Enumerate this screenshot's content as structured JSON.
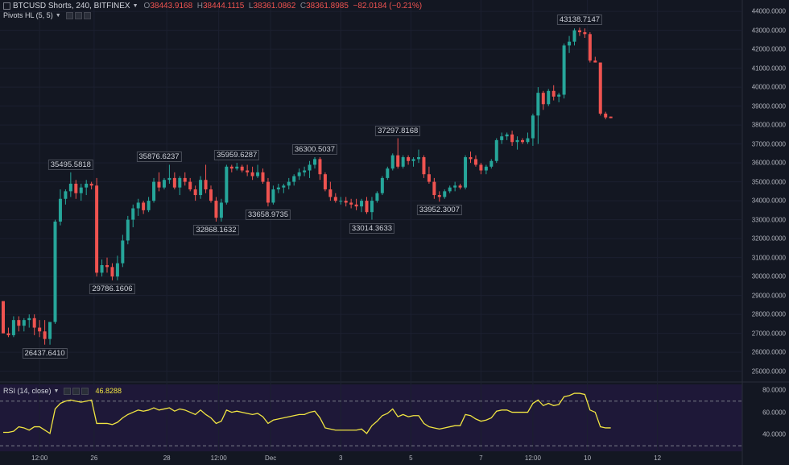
{
  "legend": {
    "symbol": "BTCUSD Shorts, 240, BITFINEX",
    "o_label": "O",
    "o_value": "38443.9168",
    "h_label": "H",
    "h_value": "38444.1115",
    "l_label": "L",
    "l_value": "38361.0862",
    "c_label": "C",
    "c_value": "38361.8985",
    "change": "−82.0184 (−0.21%)"
  },
  "indicators": {
    "pivots_label": "Pivots HL (5, 5)",
    "rsi_label": "RSI (14, close)",
    "rsi_value": "46.8288"
  },
  "colors": {
    "background": "#131722",
    "rsi_background": "#1e1838",
    "up": "#26a69a",
    "down": "#ef5350",
    "rsi_line": "#f0e442"
  },
  "chart_data": {
    "type": "candlestick",
    "price_range": [
      24600,
      44600
    ],
    "price_ticks": [
      25000,
      26000,
      27000,
      28000,
      29000,
      30000,
      31000,
      32000,
      33000,
      34000,
      35000,
      36000,
      37000,
      38000,
      39000,
      40000,
      41000,
      42000,
      43000,
      44000
    ],
    "price_tick_labels": [
      "25000.0000",
      "26000.0000",
      "27000.0000",
      "28000.0000",
      "29000.0000",
      "30000.0000",
      "31000.0000",
      "32000.0000",
      "33000.0000",
      "34000.0000",
      "35000.0000",
      "36000.0000",
      "37000.0000",
      "38000.0000",
      "39000.0000",
      "40000.0000",
      "41000.0000",
      "42000.0000",
      "43000.0000",
      "44000.0000"
    ],
    "x_ticks": [
      {
        "label": "12:00",
        "index": 7
      },
      {
        "label": "26",
        "index": 17.5
      },
      {
        "label": "28",
        "index": 31.5
      },
      {
        "label": "12:00",
        "index": 41.5
      },
      {
        "label": "Dec",
        "index": 51.5
      },
      {
        "label": "3",
        "index": 65
      },
      {
        "label": "5",
        "index": 78.5
      },
      {
        "label": "7",
        "index": 92
      },
      {
        "label": "12:00",
        "index": 102
      },
      {
        "label": "10",
        "index": 112.5
      },
      {
        "label": "12",
        "index": 126
      }
    ],
    "candles": [
      [
        28700,
        28700,
        27000,
        27000
      ],
      [
        27000,
        27300,
        26800,
        26900
      ],
      [
        26900,
        27900,
        26800,
        27700
      ],
      [
        27700,
        27900,
        27100,
        27400
      ],
      [
        27400,
        27800,
        27100,
        27700
      ],
      [
        27700,
        28000,
        27300,
        27800
      ],
      [
        27800,
        28000,
        26900,
        27300
      ],
      [
        27300,
        27700,
        26800,
        27100
      ],
      [
        27100,
        27700,
        26400,
        26700
      ],
      [
        26700,
        27500,
        26400,
        27600
      ],
      [
        27600,
        33000,
        27500,
        32900
      ],
      [
        32900,
        34600,
        32700,
        34100
      ],
      [
        34100,
        34600,
        33800,
        34500
      ],
      [
        34500,
        35500,
        34200,
        34900
      ],
      [
        34900,
        35100,
        34100,
        34400
      ],
      [
        34400,
        34900,
        34000,
        34700
      ],
      [
        34700,
        35100,
        34300,
        34900
      ],
      [
        34900,
        35000,
        34600,
        34800
      ],
      [
        34800,
        35200,
        30000,
        30200
      ],
      [
        30200,
        30900,
        30000,
        30600
      ],
      [
        30600,
        31000,
        30200,
        30500
      ],
      [
        30500,
        30700,
        29800,
        30000
      ],
      [
        30000,
        31100,
        29800,
        30700
      ],
      [
        30700,
        32200,
        30500,
        31900
      ],
      [
        31900,
        33200,
        31700,
        33000
      ],
      [
        33000,
        33800,
        32600,
        33600
      ],
      [
        33600,
        34100,
        33200,
        33900
      ],
      [
        33900,
        34000,
        33300,
        33500
      ],
      [
        33500,
        34200,
        33400,
        34000
      ],
      [
        34000,
        35200,
        33900,
        35000
      ],
      [
        35000,
        35500,
        34500,
        34700
      ],
      [
        34700,
        35200,
        34600,
        35100
      ],
      [
        35100,
        35900,
        34900,
        35200
      ],
      [
        35200,
        35500,
        34600,
        34700
      ],
      [
        34700,
        35300,
        34300,
        35200
      ],
      [
        35200,
        35500,
        34800,
        35000
      ],
      [
        35000,
        35200,
        34500,
        34600
      ],
      [
        34600,
        34800,
        34000,
        34300
      ],
      [
        34300,
        35300,
        34100,
        35100
      ],
      [
        35100,
        35900,
        34400,
        34600
      ],
      [
        34600,
        34800,
        33900,
        34000
      ],
      [
        34000,
        34200,
        32900,
        33100
      ],
      [
        33100,
        34100,
        32900,
        33900
      ],
      [
        33900,
        35900,
        33800,
        35800
      ],
      [
        35800,
        35900,
        35500,
        35700
      ],
      [
        35700,
        36000,
        35600,
        35800
      ],
      [
        35800,
        35900,
        35500,
        35600
      ],
      [
        35600,
        35900,
        35300,
        35500
      ],
      [
        35500,
        35800,
        35100,
        35300
      ],
      [
        35300,
        35900,
        35200,
        35500
      ],
      [
        35500,
        35700,
        34900,
        35000
      ],
      [
        35000,
        35200,
        33700,
        33900
      ],
      [
        33900,
        34800,
        33800,
        34600
      ],
      [
        34600,
        34900,
        34400,
        34700
      ],
      [
        34700,
        34900,
        34400,
        34800
      ],
      [
        34800,
        35200,
        34600,
        35000
      ],
      [
        35000,
        35400,
        34800,
        35300
      ],
      [
        35300,
        35700,
        35100,
        35500
      ],
      [
        35500,
        35800,
        35300,
        35600
      ],
      [
        35600,
        36100,
        35200,
        35900
      ],
      [
        35900,
        36300,
        35700,
        36200
      ],
      [
        36200,
        36300,
        35100,
        35400
      ],
      [
        35400,
        35500,
        34500,
        34600
      ],
      [
        34600,
        35000,
        34000,
        34200
      ],
      [
        34200,
        34400,
        33900,
        34000
      ],
      [
        34000,
        34200,
        33800,
        34000
      ],
      [
        34000,
        34200,
        33700,
        33900
      ],
      [
        33900,
        34100,
        33600,
        33800
      ],
      [
        33800,
        34100,
        33500,
        33700
      ],
      [
        33700,
        34100,
        33400,
        34000
      ],
      [
        34000,
        34200,
        33300,
        33400
      ],
      [
        33400,
        34200,
        33000,
        34000
      ],
      [
        34000,
        34500,
        33900,
        34400
      ],
      [
        34400,
        35300,
        34300,
        35200
      ],
      [
        35200,
        35800,
        35100,
        35700
      ],
      [
        35700,
        36500,
        35600,
        36400
      ],
      [
        36400,
        37300,
        35700,
        35800
      ],
      [
        35800,
        36400,
        35700,
        36300
      ],
      [
        36300,
        36400,
        35900,
        36100
      ],
      [
        36100,
        36300,
        35800,
        36200
      ],
      [
        36200,
        36700,
        36000,
        36300
      ],
      [
        36300,
        36400,
        35200,
        35400
      ],
      [
        35400,
        35800,
        34900,
        35000
      ],
      [
        35000,
        35200,
        34100,
        34300
      ],
      [
        34300,
        34500,
        33950,
        34200
      ],
      [
        34200,
        34600,
        34100,
        34500
      ],
      [
        34500,
        34800,
        34400,
        34700
      ],
      [
        34700,
        35000,
        34500,
        34800
      ],
      [
        34800,
        34900,
        34600,
        34700
      ],
      [
        34700,
        36400,
        34600,
        36300
      ],
      [
        36300,
        36600,
        36000,
        36200
      ],
      [
        36200,
        36400,
        35800,
        35900
      ],
      [
        35900,
        36000,
        35400,
        35600
      ],
      [
        35600,
        35900,
        35400,
        35800
      ],
      [
        35800,
        36200,
        35700,
        36100
      ],
      [
        36100,
        37300,
        36000,
        37200
      ],
      [
        37200,
        37600,
        37000,
        37400
      ],
      [
        37400,
        37600,
        37200,
        37500
      ],
      [
        37500,
        37700,
        36900,
        37100
      ],
      [
        37100,
        37400,
        36700,
        37200
      ],
      [
        37200,
        37300,
        37000,
        37100
      ],
      [
        37100,
        37600,
        37000,
        37300
      ],
      [
        37300,
        38600,
        36900,
        38500
      ],
      [
        38500,
        40000,
        37000,
        39700
      ],
      [
        39700,
        39800,
        38800,
        39100
      ],
      [
        39100,
        39900,
        39000,
        39800
      ],
      [
        39800,
        40100,
        39300,
        39500
      ],
      [
        39500,
        39700,
        39200,
        39600
      ],
      [
        39600,
        42300,
        39400,
        42200
      ],
      [
        42200,
        42700,
        41800,
        42400
      ],
      [
        42400,
        43100,
        42200,
        43000
      ],
      [
        43000,
        43140,
        42700,
        42900
      ],
      [
        42900,
        43100,
        42600,
        42800
      ],
      [
        42800,
        42900,
        41300,
        41400
      ],
      [
        41400,
        41600,
        41300,
        41300
      ],
      [
        41300,
        41300,
        38500,
        38600
      ],
      [
        38600,
        38700,
        38300,
        38400
      ],
      [
        38444,
        38444,
        38361,
        38362
      ]
    ],
    "pivot_labels": [
      {
        "text": "26437.6410",
        "index": 8,
        "price": 26400,
        "position": "below"
      },
      {
        "text": "35495.5818",
        "index": 13,
        "price": 35500,
        "position": "above"
      },
      {
        "text": "29786.1606",
        "index": 21,
        "price": 29800,
        "position": "below"
      },
      {
        "text": "35876.6237",
        "index": 30,
        "price": 35900,
        "position": "above"
      },
      {
        "text": "32868.1632",
        "index": 41,
        "price": 32900,
        "position": "below"
      },
      {
        "text": "35959.6287",
        "index": 45,
        "price": 36000,
        "position": "above"
      },
      {
        "text": "33658.9735",
        "index": 51,
        "price": 33700,
        "position": "below"
      },
      {
        "text": "36300.5037",
        "index": 60,
        "price": 36300,
        "position": "above"
      },
      {
        "text": "33014.3633",
        "index": 71,
        "price": 33000,
        "position": "below"
      },
      {
        "text": "37297.8168",
        "index": 76,
        "price": 37300,
        "position": "above"
      },
      {
        "text": "33952.3007",
        "index": 84,
        "price": 33950,
        "position": "below"
      },
      {
        "text": "43138.7147",
        "index": 111,
        "price": 43140,
        "position": "above"
      }
    ],
    "rsi": {
      "range": [
        25,
        85
      ],
      "ticks": [
        40,
        60,
        80
      ],
      "tick_labels": [
        "40.0000",
        "60.0000",
        "80.0000"
      ],
      "bands": [
        30,
        70
      ],
      "values": [
        42,
        42,
        43,
        47,
        46,
        44,
        47,
        47,
        44,
        41,
        63,
        68,
        70,
        71,
        70,
        69,
        70,
        71,
        50,
        50,
        50,
        49,
        51,
        55,
        58,
        60,
        62,
        61,
        62,
        64,
        62,
        63,
        64,
        61,
        63,
        62,
        60,
        58,
        62,
        58,
        55,
        50,
        52,
        62,
        60,
        61,
        60,
        59,
        58,
        59,
        56,
        50,
        53,
        54,
        55,
        56,
        57,
        58,
        58,
        60,
        61,
        55,
        46,
        45,
        44,
        44,
        44,
        44,
        44,
        45,
        41,
        48,
        52,
        57,
        59,
        63,
        56,
        58,
        56,
        57,
        57,
        50,
        47,
        46,
        45,
        46,
        47,
        48,
        48,
        58,
        57,
        54,
        52,
        53,
        55,
        61,
        62,
        62,
        60,
        60,
        60,
        60,
        68,
        71,
        66,
        68,
        66,
        67,
        74,
        75,
        77,
        77,
        76,
        62,
        60,
        47,
        46,
        46
      ]
    }
  }
}
